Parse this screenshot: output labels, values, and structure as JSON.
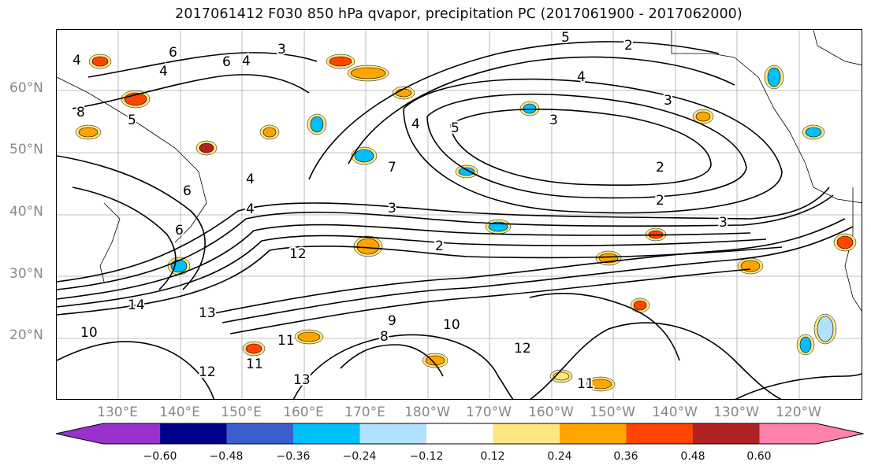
{
  "title": "2017061412 F030 850 hPa qvapor, precipitation PC (2017061900 - 2017062000)",
  "lat_labels": [
    "60°N",
    "50°N",
    "40°N",
    "30°N",
    "20°N"
  ],
  "lon_labels": [
    "130°E",
    "140°E",
    "150°E",
    "160°E",
    "170°E",
    "180°W",
    "170°W",
    "160°W",
    "150°W",
    "140°W",
    "130°W",
    "120°W"
  ],
  "colorbar": {
    "tick_labels": [
      "−0.60",
      "−0.48",
      "−0.36",
      "−0.24",
      "−0.12",
      "0.12",
      "0.24",
      "0.36",
      "0.48",
      "0.60"
    ],
    "colors": [
      "#9932cc",
      "#00008b",
      "#3a5fcd",
      "#00bfff",
      "#b0e2ff",
      "#ffffff",
      "#ffe680",
      "#ffa500",
      "#ff4500",
      "#b22222",
      "#ff82ab"
    ],
    "extend": "both"
  },
  "contour_labels": [
    "6",
    "4",
    "5",
    "3",
    "4",
    "6",
    "4",
    "2",
    "4",
    "8",
    "5",
    "3",
    "4",
    "3",
    "2",
    "6",
    "4",
    "3",
    "2",
    "3",
    "2",
    "6",
    "12",
    "10",
    "14",
    "13",
    "12",
    "11",
    "11",
    "13",
    "9",
    "8",
    "10",
    "12",
    "11",
    "7",
    "4",
    "5"
  ],
  "gridlines": true
}
